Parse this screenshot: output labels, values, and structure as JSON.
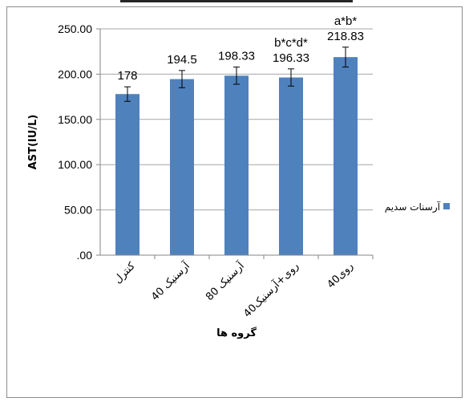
{
  "chart_data": {
    "type": "bar",
    "title": "",
    "xlabel": "گروه ها",
    "ylabel": "AST(IU/L)",
    "ylim": [
      0,
      250
    ],
    "y_ticks": [
      ".00",
      "50.00",
      "100.00",
      "150.00",
      "200.00",
      "250.00"
    ],
    "y_tick_values": [
      0,
      50,
      100,
      150,
      200,
      250
    ],
    "categories": [
      "کنترل",
      "آرسنیک 40",
      "آرسنیک 80",
      "روی+آرسنیک40",
      "روی40"
    ],
    "series": [
      {
        "name": "آرسنات سدیم",
        "values": [
          178,
          194.5,
          198.33,
          196.33,
          218.83
        ],
        "errors": [
          8,
          9.5,
          9.5,
          9.5,
          11
        ],
        "color": "#4f81bd"
      }
    ],
    "data_labels": [
      "178",
      "194.5",
      "198.33",
      "196.33",
      "218.83"
    ],
    "annotations": [
      "",
      "",
      "",
      "b*c*d*",
      "a*b*"
    ],
    "grid": true,
    "legend_position": "right",
    "colors": {
      "bar": "#4f81bd",
      "grid": "#a6a6a6",
      "axis": "#868686",
      "frame": "#8c8c8c"
    }
  }
}
